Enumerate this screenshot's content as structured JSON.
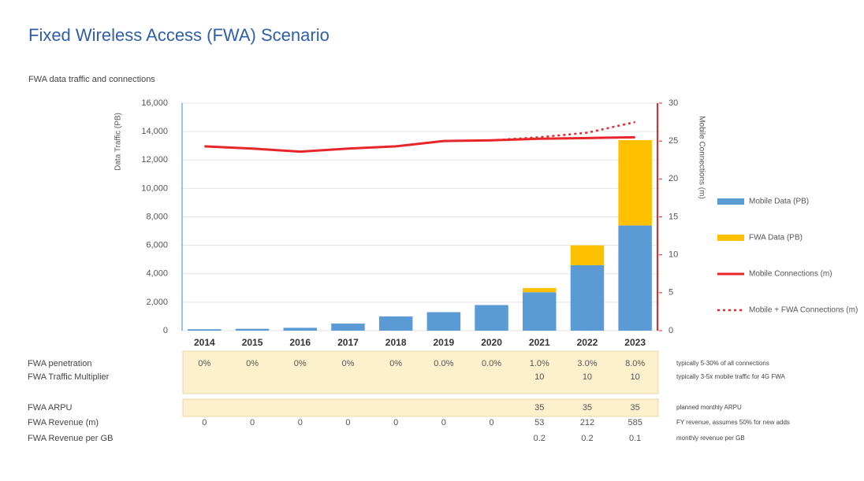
{
  "chart_data": {
    "type": "bar",
    "title": "Fixed Wireless Access (FWA) Scenario",
    "subtitle": "FWA data traffic and connections",
    "y_label": "Data Traffic (PB)",
    "y2_label": "Mobile Connections (m)",
    "categories": [
      "2014",
      "2015",
      "2016",
      "2017",
      "2018",
      "2019",
      "2020",
      "2021",
      "2022",
      "2023"
    ],
    "series": [
      {
        "name": "Mobile Data (PB)",
        "type": "bar",
        "color": "#5b9bd5",
        "values": [
          100,
          130,
          200,
          500,
          1000,
          1300,
          1800,
          2700,
          4600,
          7400
        ]
      },
      {
        "name": "FWA Data (PB)",
        "type": "bar",
        "color": "#ffc000",
        "values": [
          0,
          0,
          0,
          0,
          0,
          0,
          0,
          300,
          1400,
          6000
        ]
      },
      {
        "name": "Mobile Connections (m)",
        "type": "line",
        "axis": "y2",
        "color": "#e8262a",
        "values": [
          24.3,
          24.0,
          23.6,
          24.0,
          24.3,
          25.0,
          25.1,
          25.3,
          25.4,
          25.5
        ]
      },
      {
        "name": "Mobile + FWA Connections (m)",
        "type": "line",
        "dashed": true,
        "axis": "y2",
        "color": "#e8262a",
        "values": [
          null,
          null,
          null,
          null,
          null,
          null,
          25.1,
          25.5,
          26.1,
          27.5
        ]
      }
    ],
    "stacked": true,
    "ylim": [
      0,
      16000
    ],
    "yticks": [
      0,
      {
        "value": 2000,
        "label": "2,000"
      },
      {
        "value": 4000,
        "label": "4,000"
      },
      {
        "value": 6000,
        "label": "6,000"
      },
      {
        "value": 8000,
        "label": "8,000"
      },
      {
        "value": 10000,
        "label": "10,000"
      },
      {
        "value": 12000,
        "label": "12,000"
      },
      {
        "value": 14000,
        "label": "14,000"
      },
      {
        "value": 16000,
        "label": "16,000"
      }
    ],
    "y2lim": [
      0,
      30
    ],
    "y2ticks": [
      0,
      5,
      10,
      15,
      20,
      25,
      30
    ],
    "grid": true,
    "legend": "right"
  },
  "table": {
    "rows": [
      {
        "label": "FWA penetration",
        "cells": [
          "0%",
          "0%",
          "0%",
          "0%",
          "0%",
          "0.0%",
          "0.0%",
          "1.0%",
          "3.0%",
          "8.0%"
        ],
        "note": "typically 5-30% of all connections"
      },
      {
        "label": "FWA Traffic Multiplier",
        "cells": [
          null,
          null,
          null,
          null,
          null,
          null,
          null,
          "10",
          "10",
          "10"
        ],
        "note": "typically 3-5x mobile traffic for 4G FWA"
      },
      {
        "label": "FWA ARPU",
        "cells": [
          null,
          null,
          null,
          null,
          null,
          null,
          null,
          "35",
          "35",
          "35"
        ],
        "note": "planned monthly ARPU"
      },
      {
        "label": "FWA Revenue (m)",
        "cells": [
          "0",
          "0",
          "0",
          "0",
          "0",
          "0",
          "0",
          "53",
          "212",
          "585"
        ],
        "note": "FY revenue, assumes 50% for new adds"
      },
      {
        "label": "FWA Revenue per GB",
        "cells": [
          null,
          null,
          null,
          null,
          null,
          null,
          null,
          "0.2",
          "0.2",
          "0.1"
        ],
        "note": "monthly revenue per GB"
      }
    ]
  }
}
